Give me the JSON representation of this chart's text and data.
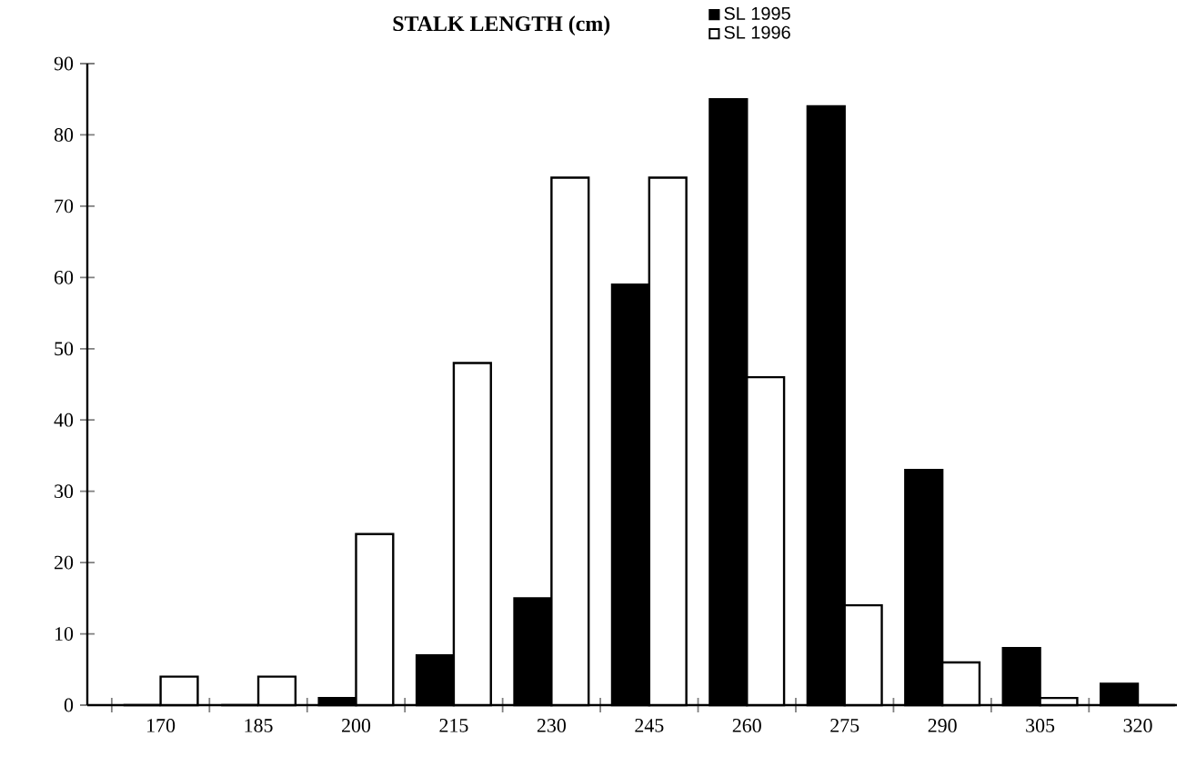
{
  "chart_data": {
    "type": "bar",
    "title": "STALK LENGTH (cm)",
    "categories": [
      "170",
      "185",
      "200",
      "215",
      "230",
      "245",
      "260",
      "275",
      "290",
      "305",
      "320"
    ],
    "series": [
      {
        "name": "SL 1995",
        "color": "#000000",
        "values": [
          0,
          0,
          1,
          7,
          15,
          59,
          85,
          84,
          33,
          8,
          3
        ]
      },
      {
        "name": "SL 1996",
        "color": "#ffffff",
        "values": [
          4,
          4,
          24,
          48,
          74,
          74,
          46,
          14,
          6,
          1,
          0
        ]
      }
    ],
    "ylim": [
      0,
      90
    ],
    "yticks": [
      0,
      10,
      20,
      30,
      40,
      50,
      60,
      70,
      80,
      90
    ],
    "legend": "top",
    "grid": false
  }
}
